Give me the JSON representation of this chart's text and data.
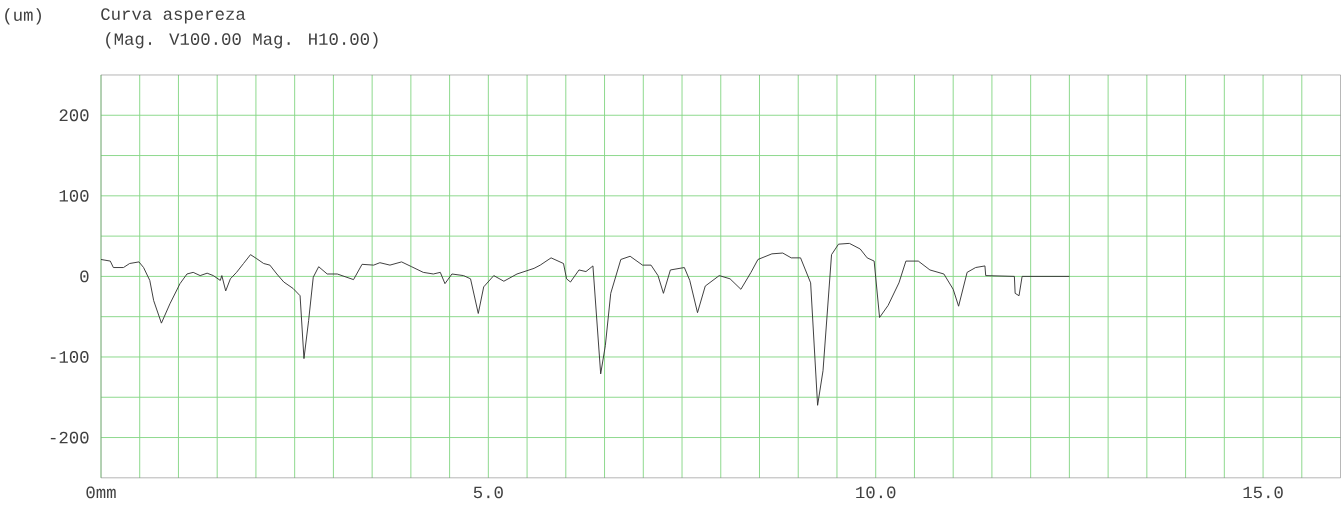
{
  "chart_data": {
    "type": "line",
    "title": "Curva aspereza",
    "subtitle": "(Mag. V100.00 Mag. H10.00)",
    "ylabel": "(um)",
    "x": [
      0,
      0.12,
      0.16,
      0.29,
      0.37,
      0.49,
      0.55,
      0.63,
      0.68,
      0.78,
      0.89,
      1.02,
      1.11,
      1.19,
      1.28,
      1.37,
      1.45,
      1.54,
      1.56,
      1.61,
      1.67,
      1.75,
      1.84,
      1.93,
      2.01,
      2.1,
      2.18,
      2.27,
      2.36,
      2.48,
      2.57,
      2.62,
      2.68,
      2.74,
      2.81,
      2.92,
      3.05,
      3.26,
      3.37,
      3.52,
      3.6,
      3.73,
      3.88,
      4.01,
      4.16,
      4.29,
      4.38,
      4.44,
      4.53,
      4.68,
      4.77,
      4.87,
      4.94,
      5.07,
      5.2,
      5.37,
      5.59,
      5.67,
      5.81,
      5.97,
      6.01,
      6.06,
      6.17,
      6.26,
      6.35,
      6.45,
      6.51,
      6.58,
      6.71,
      6.83,
      6.99,
      7.1,
      7.19,
      7.26,
      7.35,
      7.53,
      7.6,
      7.7,
      7.8,
      7.98,
      8.12,
      8.26,
      8.39,
      8.48,
      8.66,
      8.8,
      8.91,
      9.03,
      9.16,
      9.25,
      9.32,
      9.43,
      9.52,
      9.66,
      9.8,
      9.89,
      9.98,
      10.05,
      10.16,
      10.3,
      10.39,
      10.55,
      10.7,
      10.88,
      11.0,
      11.07,
      11.18,
      11.29,
      11.41,
      11.42,
      11.79,
      11.8,
      11.85,
      11.89,
      12.5
    ],
    "values": [
      21,
      19,
      11,
      11,
      16,
      18,
      11,
      -5,
      -30,
      -58,
      -34,
      -9,
      3,
      5,
      1,
      4,
      1,
      -5,
      1,
      -18,
      -3,
      5,
      16,
      27,
      22,
      16,
      14,
      3,
      -7,
      -15,
      -24,
      -102,
      -55,
      -1,
      12,
      3,
      3,
      -4,
      15,
      14,
      17,
      14,
      18,
      12,
      5,
      3,
      5,
      -9,
      3,
      1,
      -3,
      -46,
      -13,
      1,
      -6,
      3,
      10,
      14,
      23,
      16,
      -3,
      -7,
      8,
      6,
      13,
      -121,
      -86,
      -21,
      21,
      25,
      14,
      14,
      1,
      -21,
      8,
      11,
      -5,
      -45,
      -12,
      1,
      -3,
      -16,
      5,
      21,
      28,
      29,
      23,
      23,
      -8,
      -160,
      -117,
      27,
      40,
      41,
      34,
      23,
      19,
      -51,
      -36,
      -8,
      19,
      19,
      8,
      3,
      -16,
      -37,
      5,
      11,
      13,
      1,
      0,
      -21,
      -24,
      0,
      0
    ],
    "color": "#333333",
    "xlim": [
      0,
      16
    ],
    "ylim": [
      -250,
      250
    ],
    "xticks": [
      {
        "value": 0,
        "label": "0mm"
      },
      {
        "value": 0.5,
        "label": null
      },
      {
        "value": 1,
        "label": null
      },
      {
        "value": 1.5,
        "label": null
      },
      {
        "value": 2,
        "label": null
      },
      {
        "value": 2.5,
        "label": null
      },
      {
        "value": 3,
        "label": null
      },
      {
        "value": 3.5,
        "label": null
      },
      {
        "value": 4,
        "label": null
      },
      {
        "value": 4.5,
        "label": null
      },
      {
        "value": 5,
        "label": "5.0"
      },
      {
        "value": 5.5,
        "label": null
      },
      {
        "value": 6,
        "label": null
      },
      {
        "value": 6.5,
        "label": null
      },
      {
        "value": 7,
        "label": null
      },
      {
        "value": 7.5,
        "label": null
      },
      {
        "value": 8,
        "label": null
      },
      {
        "value": 8.5,
        "label": null
      },
      {
        "value": 9,
        "label": null
      },
      {
        "value": 9.5,
        "label": null
      },
      {
        "value": 10,
        "label": "10.0"
      },
      {
        "value": 10.5,
        "label": null
      },
      {
        "value": 11,
        "label": null
      },
      {
        "value": 11.5,
        "label": null
      },
      {
        "value": 12,
        "label": null
      },
      {
        "value": 12.5,
        "label": null
      },
      {
        "value": 13,
        "label": null
      },
      {
        "value": 13.5,
        "label": null
      },
      {
        "value": 14,
        "label": null
      },
      {
        "value": 14.5,
        "label": null
      },
      {
        "value": 15,
        "label": "15.0"
      },
      {
        "value": 15.5,
        "label": null
      }
    ],
    "yticks": [
      -200,
      {
        "value": -150,
        "label": null
      },
      -100,
      {
        "value": -50,
        "label": null
      },
      0,
      {
        "value": 50,
        "label": null
      },
      100,
      {
        "value": 150,
        "label": null
      },
      200
    ],
    "grid": true
  }
}
